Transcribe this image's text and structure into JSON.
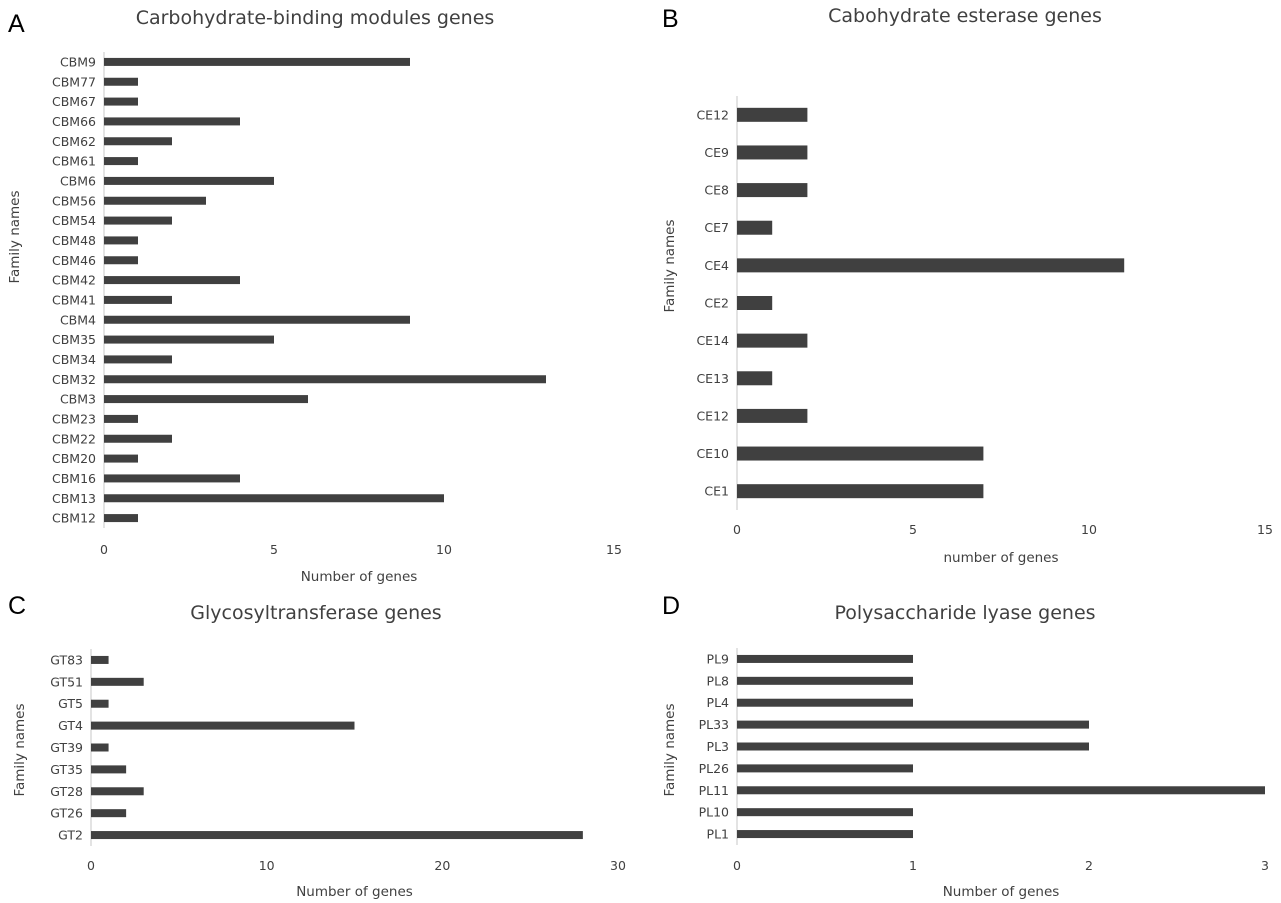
{
  "chart_data": [
    {
      "panel": "A",
      "type": "bar",
      "orientation": "horizontal",
      "title": "Carbohydrate-binding modules genes",
      "xlabel": "Number of genes",
      "ylabel": "Family names",
      "xlim": [
        0,
        15
      ],
      "xticks": [
        "0",
        "5",
        "10",
        "15"
      ],
      "grid": false,
      "legend": "none",
      "bar_color": "#404040",
      "categories": [
        "CBM9",
        "CBM77",
        "CBM67",
        "CBM66",
        "CBM62",
        "CBM61",
        "CBM6",
        "CBM56",
        "CBM54",
        "CBM48",
        "CBM46",
        "CBM42",
        "CBM41",
        "CBM4",
        "CBM35",
        "CBM34",
        "CBM32",
        "CBM3",
        "CBM23",
        "CBM22",
        "CBM20",
        "CBM16",
        "CBM13",
        "CBM12"
      ],
      "values": [
        9,
        1,
        1,
        4,
        2,
        1,
        5,
        3,
        2,
        1,
        1,
        4,
        2,
        9,
        5,
        2,
        13,
        6,
        1,
        2,
        1,
        4,
        10,
        1
      ]
    },
    {
      "panel": "B",
      "type": "bar",
      "orientation": "horizontal",
      "title": "Cabohydrate esterase genes",
      "xlabel": "number of genes",
      "ylabel": "Family names",
      "xlim": [
        0,
        15
      ],
      "xticks": [
        "0",
        "5",
        "10",
        "15"
      ],
      "grid": false,
      "legend": "none",
      "bar_color": "#404040",
      "categories": [
        "CE12",
        "CE9",
        "CE8",
        "CE7",
        "CE4",
        "CE2",
        "CE14",
        "CE13",
        "CE12",
        "CE10",
        "CE1"
      ],
      "values": [
        2,
        2,
        2,
        1,
        11,
        1,
        2,
        1,
        2,
        7,
        7
      ]
    },
    {
      "panel": "C",
      "type": "bar",
      "orientation": "horizontal",
      "title": "Glycosyltransferase genes",
      "xlabel": "Number of genes",
      "ylabel": "Family names",
      "xlim": [
        0,
        30
      ],
      "xticks": [
        "0",
        "10",
        "20",
        "30"
      ],
      "grid": false,
      "legend": "none",
      "bar_color": "#404040",
      "categories": [
        "GT83",
        "GT51",
        "GT5",
        "GT4",
        "GT39",
        "GT35",
        "GT28",
        "GT26",
        "GT2"
      ],
      "values": [
        1,
        3,
        1,
        15,
        1,
        2,
        3,
        2,
        28
      ]
    },
    {
      "panel": "D",
      "type": "bar",
      "orientation": "horizontal",
      "title": "Polysaccharide lyase genes",
      "xlabel": "Number of genes",
      "ylabel": "Family names",
      "xlim": [
        0,
        3
      ],
      "xticks": [
        "0",
        "1",
        "2",
        "3"
      ],
      "grid": false,
      "legend": "none",
      "bar_color": "#404040",
      "categories": [
        "PL9",
        "PL8",
        "PL4",
        "PL33",
        "PL3",
        "PL26",
        "PL11",
        "PL10",
        "PL1"
      ],
      "values": [
        1,
        1,
        1,
        2,
        2,
        1,
        3,
        1,
        1
      ]
    }
  ]
}
